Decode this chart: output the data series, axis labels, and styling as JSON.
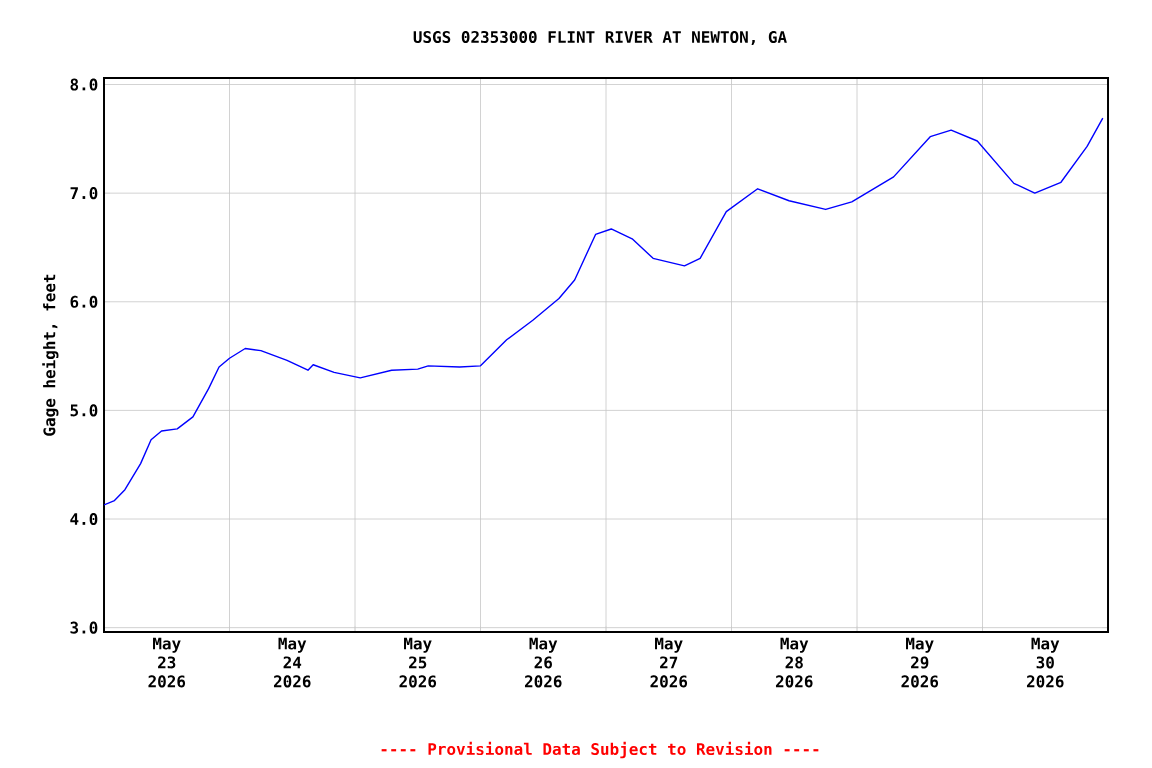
{
  "chart_data": {
    "type": "line",
    "title": "USGS 02353000 FLINT RIVER AT NEWTON, GA",
    "ylabel": "Gage height, feet",
    "annotations": [
      "---- Provisional Data Subject to Revision ----"
    ],
    "x": [
      "2026-05-23T00:00",
      "2026-05-23T02:00",
      "2026-05-23T04:00",
      "2026-05-23T07:00",
      "2026-05-23T09:00",
      "2026-05-23T11:00",
      "2026-05-23T14:00",
      "2026-05-23T17:00",
      "2026-05-23T20:00",
      "2026-05-23T22:00",
      "2026-05-24T00:00",
      "2026-05-24T03:00",
      "2026-05-24T06:00",
      "2026-05-24T11:00",
      "2026-05-24T15:00",
      "2026-05-24T16:00",
      "2026-05-24T20:00",
      "2026-05-25T01:00",
      "2026-05-25T07:00",
      "2026-05-25T12:00",
      "2026-05-25T14:00",
      "2026-05-25T20:00",
      "2026-05-26T00:00",
      "2026-05-26T05:00",
      "2026-05-26T10:00",
      "2026-05-26T15:00",
      "2026-05-26T18:00",
      "2026-05-26T22:00",
      "2026-05-27T01:00",
      "2026-05-27T05:00",
      "2026-05-27T09:00",
      "2026-05-27T15:00",
      "2026-05-27T18:00",
      "2026-05-27T23:00",
      "2026-05-28T05:00",
      "2026-05-28T11:00",
      "2026-05-28T18:00",
      "2026-05-28T23:00",
      "2026-05-29T07:00",
      "2026-05-29T14:00",
      "2026-05-29T18:00",
      "2026-05-29T23:00",
      "2026-05-30T06:00",
      "2026-05-30T10:00",
      "2026-05-30T15:00",
      "2026-05-30T20:00",
      "2026-05-30T23:00"
    ],
    "values": [
      4.13,
      4.17,
      4.27,
      4.51,
      4.73,
      4.81,
      4.83,
      4.94,
      5.2,
      5.4,
      5.48,
      5.57,
      5.55,
      5.46,
      5.37,
      5.42,
      5.35,
      5.3,
      5.37,
      5.38,
      5.41,
      5.4,
      5.41,
      5.65,
      5.83,
      6.03,
      6.2,
      6.62,
      6.67,
      6.58,
      6.4,
      6.33,
      6.4,
      6.83,
      7.04,
      6.93,
      6.85,
      6.92,
      7.15,
      7.52,
      7.58,
      7.48,
      7.09,
      7.0,
      7.1,
      7.43,
      7.69
    ],
    "color": "#0000ff",
    "marker": "none",
    "line_style": "solid",
    "grid": true,
    "xlim": [
      "2026-05-23T00:00",
      "2026-05-31T00:00"
    ],
    "xticks": [
      {
        "value": "2026-05-24T00:00",
        "label": null
      },
      {
        "value": "2026-05-25T00:00",
        "label": null
      },
      {
        "value": "2026-05-26T00:00",
        "label": null
      },
      {
        "value": "2026-05-27T00:00",
        "label": null
      },
      {
        "value": "2026-05-28T00:00",
        "label": null
      },
      {
        "value": "2026-05-29T00:00",
        "label": null
      },
      {
        "value": "2026-05-30T00:00",
        "label": null
      },
      {
        "value": "2026-05-23T12:00",
        "label": "May 23 2026"
      },
      {
        "value": "2026-05-24T12:00",
        "label": "May 24 2026"
      },
      {
        "value": "2026-05-25T12:00",
        "label": "May 25 2026"
      },
      {
        "value": "2026-05-26T12:00",
        "label": "May 26 2026"
      },
      {
        "value": "2026-05-27T12:00",
        "label": "May 27 2026"
      },
      {
        "value": "2026-05-28T12:00",
        "label": "May 28 2026"
      },
      {
        "value": "2026-05-29T12:00",
        "label": "May 29 2026"
      },
      {
        "value": "2026-05-30T12:00",
        "label": "May 30 2026"
      }
    ],
    "ylim": [
      2.96,
      8.06
    ],
    "yticks": [
      {
        "value": 3,
        "label": "3.0"
      },
      {
        "value": 4,
        "label": "4.0"
      },
      {
        "value": 5,
        "label": "5.0"
      },
      {
        "value": 6,
        "label": "6.0"
      },
      {
        "value": 7,
        "label": "7.0"
      },
      {
        "value": 8,
        "label": "8.0"
      }
    ]
  }
}
